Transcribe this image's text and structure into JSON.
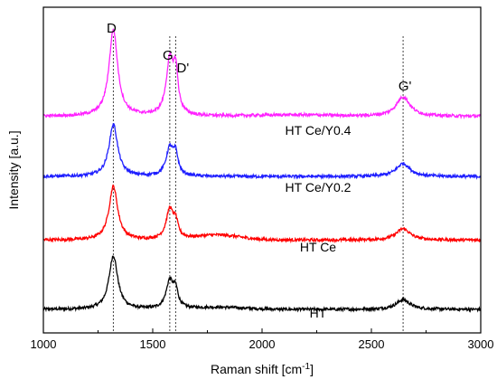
{
  "chart_data": {
    "type": "line",
    "title": "",
    "xlabel": "Raman shift [cm",
    "xlabel_sup": "-1",
    "xlabel_close": "]",
    "ylabel": "Intensity [a.u.]",
    "xlim": [
      1000,
      3000
    ],
    "ylim": [
      0,
      10
    ],
    "x_ticks": [
      1000,
      1500,
      2000,
      2500,
      3000
    ],
    "grid": false,
    "peak_lines": [
      {
        "label": "D",
        "x": 1320
      },
      {
        "label": "G",
        "x": 1578
      },
      {
        "label": "D'",
        "x": 1605
      },
      {
        "label": "G'",
        "x": 2645
      }
    ],
    "series": [
      {
        "name": "HT",
        "color": "#000000",
        "baseline": 0.72,
        "D": 1.65,
        "G": 0.85,
        "Dp": 0.5,
        "Gp": 0.3,
        "bumps": [
          {
            "x": 1810,
            "a": 0.06,
            "w": 160
          }
        ]
      },
      {
        "name": "HT Ce",
        "color": "#ff0000",
        "baseline": 2.85,
        "D": 1.65,
        "G": 0.9,
        "Dp": 0.45,
        "Gp": 0.35,
        "bumps": [
          {
            "x": 1800,
            "a": 0.15,
            "w": 140
          }
        ]
      },
      {
        "name": "HT Ce/Y0.2",
        "color": "#1f1fff",
        "baseline": 4.8,
        "D": 1.6,
        "G": 0.85,
        "Dp": 0.6,
        "Gp": 0.4,
        "bumps": []
      },
      {
        "name": "HT Ce/Y0.4",
        "color": "#ff22ff",
        "baseline": 6.65,
        "D": 2.65,
        "G": 1.65,
        "Dp": 1.2,
        "Gp": 0.6,
        "bumps": [
          {
            "x": 2150,
            "a": 0.04,
            "w": 250
          }
        ]
      }
    ]
  }
}
